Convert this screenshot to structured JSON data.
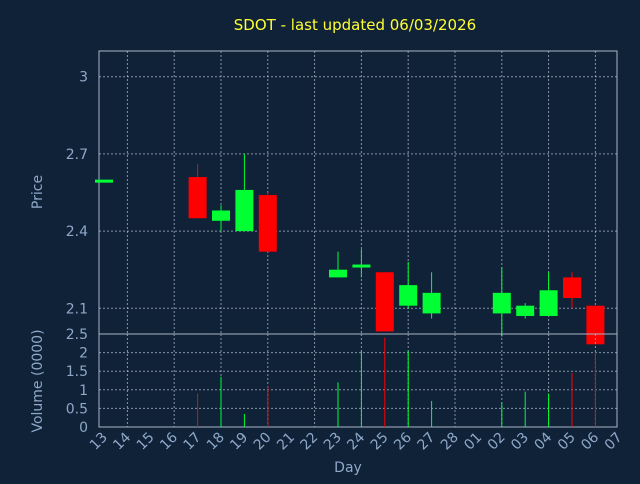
{
  "chart_data": {
    "type": "candlestick",
    "title": "SDOT - last updated 06/03/2026",
    "xlabel": "Day",
    "price_panel": {
      "ylabel": "Price",
      "ylim": [
        2.0,
        3.1
      ],
      "yticks": [
        "2.1",
        "2.4",
        "2.7",
        "3"
      ],
      "ytick_values": [
        2.1,
        2.4,
        2.7,
        3.0
      ]
    },
    "volume_panel": {
      "ylabel": "Volume (0000)",
      "ylim": [
        0,
        2.5
      ],
      "yticks": [
        "0",
        "0.5",
        "1",
        "1.5",
        "2",
        "2.5"
      ],
      "ytick_values": [
        0,
        0.5,
        1,
        1.5,
        2,
        2.5
      ]
    },
    "x_labels": [
      "13",
      "14",
      "15",
      "16",
      "17",
      "18",
      "19",
      "20",
      "21",
      "22",
      "23",
      "24",
      "25",
      "26",
      "27",
      "28",
      "01",
      "02",
      "03",
      "04",
      "05",
      "06",
      "07"
    ],
    "candles": [
      {
        "day": "13",
        "open": 2.6,
        "high": 2.6,
        "low": 2.6,
        "close": 2.6,
        "volume": 0
      },
      {
        "day": "17",
        "open": 2.61,
        "high": 2.66,
        "low": 2.45,
        "close": 2.45,
        "volume": 0.9
      },
      {
        "day": "18",
        "open": 2.44,
        "high": 2.5,
        "low": 2.4,
        "close": 2.48,
        "volume": 1.35
      },
      {
        "day": "19",
        "open": 2.4,
        "high": 2.7,
        "low": 2.4,
        "close": 2.56,
        "volume": 0.35
      },
      {
        "day": "20",
        "open": 2.54,
        "high": 2.55,
        "low": 2.32,
        "close": 2.32,
        "volume": 1.1
      },
      {
        "day": "23",
        "open": 2.22,
        "high": 2.32,
        "low": 2.22,
        "close": 2.25,
        "volume": 1.2
      },
      {
        "day": "24",
        "open": 2.27,
        "high": 2.33,
        "low": 2.22,
        "close": 2.27,
        "volume": 2.05
      },
      {
        "day": "25",
        "open": 2.24,
        "high": 2.24,
        "low": 2.01,
        "close": 2.01,
        "volume": 2.4
      },
      {
        "day": "26",
        "open": 2.11,
        "high": 2.28,
        "low": 2.1,
        "close": 2.19,
        "volume": 2.05
      },
      {
        "day": "27",
        "open": 2.08,
        "high": 2.24,
        "low": 2.06,
        "close": 2.16,
        "volume": 0.7
      },
      {
        "day": "02",
        "open": 2.08,
        "high": 2.26,
        "low": 1.99,
        "close": 2.16,
        "volume": 0.65
      },
      {
        "day": "03",
        "open": 2.07,
        "high": 2.12,
        "low": 2.06,
        "close": 2.11,
        "volume": 0.95
      },
      {
        "day": "04",
        "open": 2.07,
        "high": 2.24,
        "low": 2.07,
        "close": 2.17,
        "volume": 0.9
      },
      {
        "day": "05",
        "open": 2.22,
        "high": 2.24,
        "low": 2.1,
        "close": 2.14,
        "volume": 1.45
      },
      {
        "day": "06",
        "open": 2.11,
        "high": 2.11,
        "low": 1.96,
        "close": 1.96,
        "volume": 2.0
      }
    ],
    "grid": true,
    "colors": {
      "background": "#0f2238",
      "plot_border": "#aab6c4",
      "grid": "#b9c3cf",
      "up": "#00ff33",
      "down": "#ff0000",
      "title": "#ffff33",
      "axis_text": "#8fa8c8"
    }
  }
}
